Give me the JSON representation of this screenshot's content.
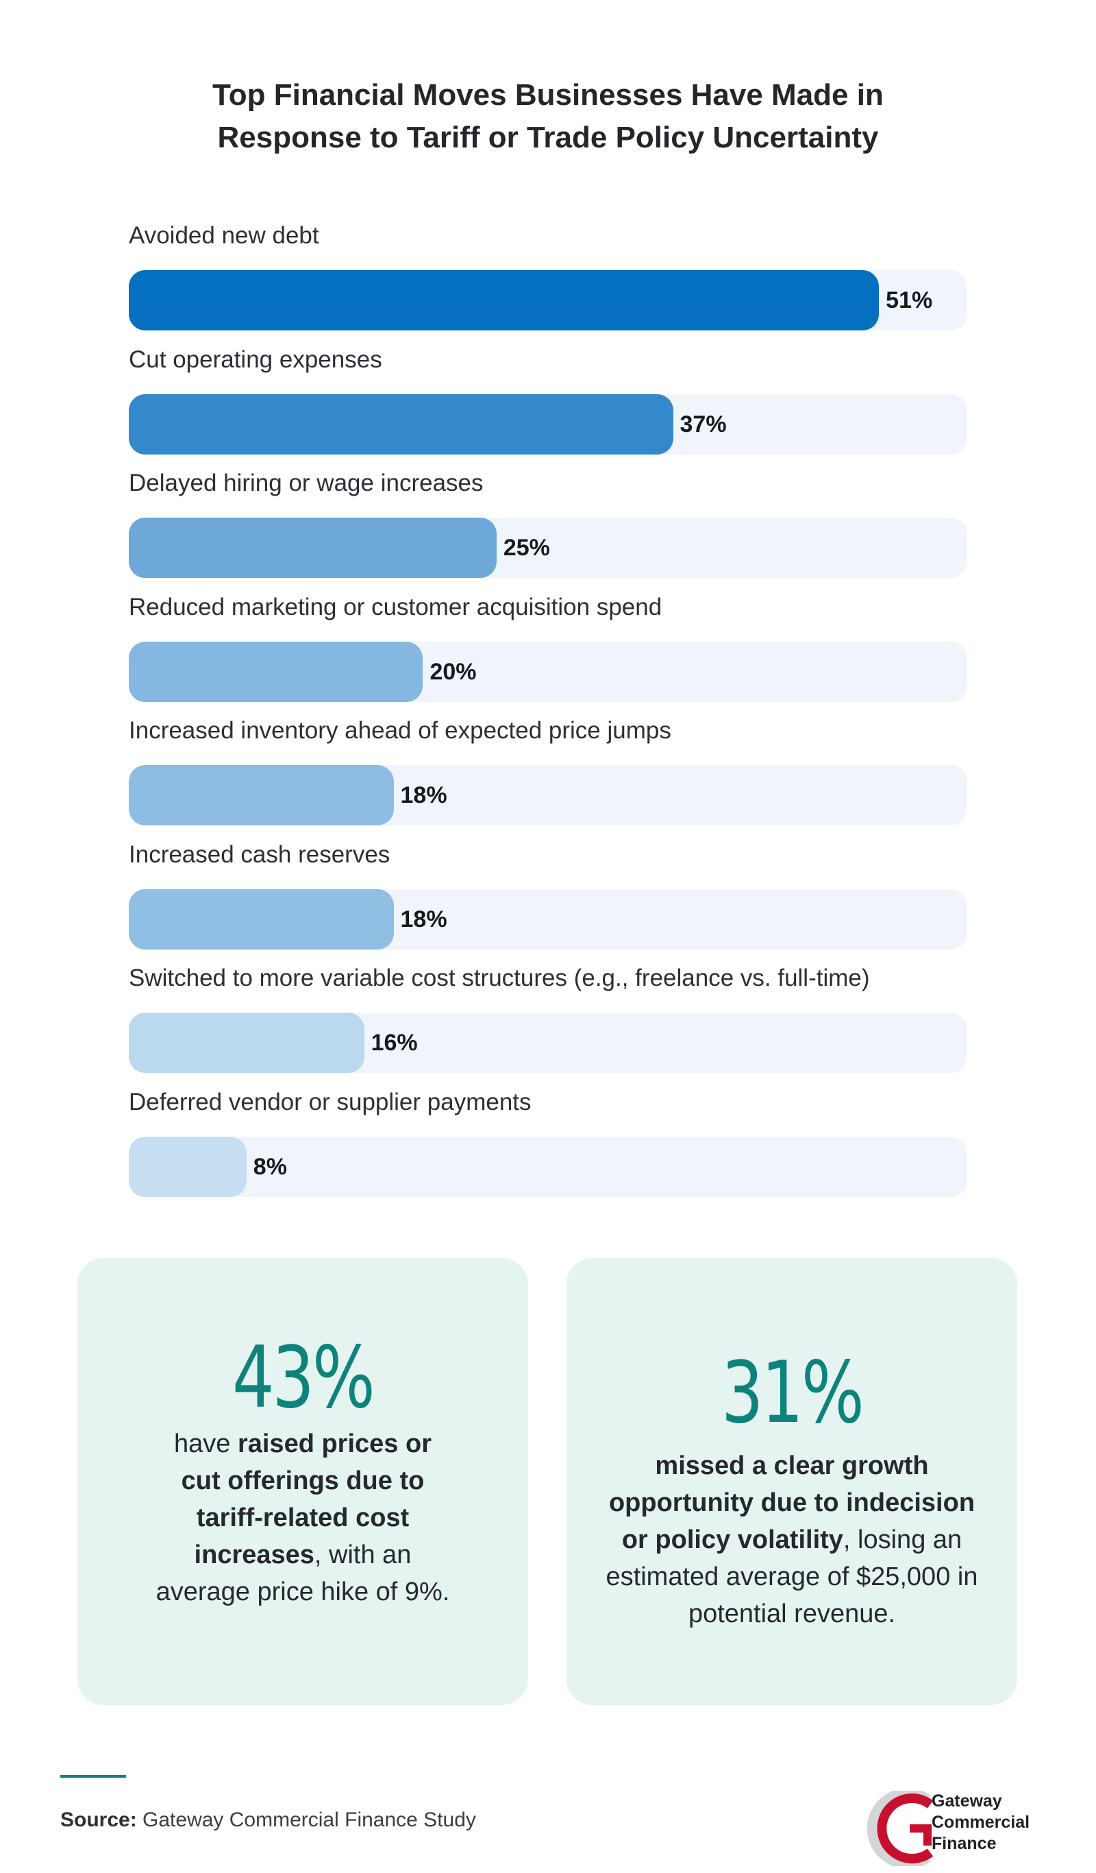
{
  "title_line1": "Top Financial Moves Businesses Have Made in",
  "title_line2": "Response to Tariff or Trade Policy Uncertainty",
  "chart_data": {
    "type": "bar",
    "orientation": "horizontal",
    "title": "Top Financial Moves Businesses Have Made in Response to Tariff or Trade Policy Uncertainty",
    "categories": [
      "Avoided new debt",
      "Cut operating expenses",
      "Delayed hiring or wage increases",
      "Reduced marketing or customer acquisition spend",
      "Increased inventory ahead of expected price jumps",
      "Increased cash reserves",
      "Switched to more variable cost structures (e.g., freelance vs. full-time)",
      "Deferred vendor or supplier payments"
    ],
    "values": [
      51,
      37,
      25,
      20,
      18,
      18,
      16,
      8
    ],
    "value_labels": [
      "51%",
      "37%",
      "25%",
      "20%",
      "18%",
      "18%",
      "16%",
      "8%"
    ],
    "bar_colors": [
      "#0670c0",
      "#3389cb",
      "#6ea8d9",
      "#85b8e0",
      "#8dbde2",
      "#8fbfe3",
      "#bad8ee",
      "#c6def1"
    ],
    "track_color": "#eff5fa",
    "xlim": [
      0,
      57
    ],
    "grid": false
  },
  "stat_left": {
    "number": "43%",
    "pre": "have ",
    "bold": "raised prices or cut offerings due to tariff-related cost increases",
    "post": ", with an average price hike of 9%."
  },
  "stat_right": {
    "number": "31%",
    "pre": "",
    "bold": "missed a clear growth opportunity due to indecision or policy volatility",
    "post": ", losing an estimated average of $25,000 in potential revenue."
  },
  "source": {
    "label": "Source:",
    "text": " Gateway Commercial Finance Study"
  },
  "logo": {
    "line1": "Gateway",
    "line2": "Commercial",
    "line3": "Finance",
    "accent_color": "#c8102e"
  },
  "colors": {
    "accent_teal": "#0d837c",
    "card_bg": "#e6f4f1"
  }
}
